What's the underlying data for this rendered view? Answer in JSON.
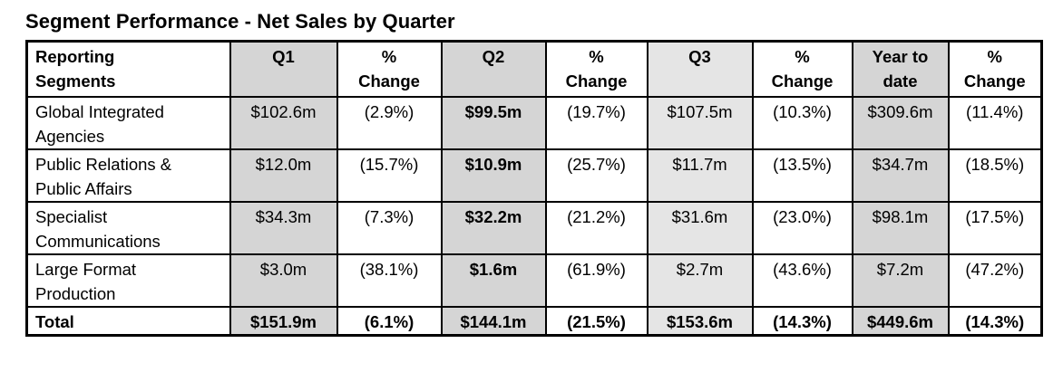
{
  "title": "Segment Performance - Net Sales by Quarter",
  "colors": {
    "shade_dark": "#d5d5d5",
    "shade_light": "#e5e5e5",
    "border": "#000000",
    "text": "#000000",
    "page_background": "#ffffff"
  },
  "table": {
    "header_labels": [
      "Reporting\nSegments",
      "Q1",
      "%\nChange",
      "Q2",
      "%\nChange",
      "Q3",
      "%\nChange",
      "Year to\ndate",
      "%\nChange"
    ],
    "columns": [
      {
        "key": "segment",
        "shade": "none",
        "align": "left",
        "bold_values": false
      },
      {
        "key": "q1",
        "shade": "dark",
        "align": "center",
        "bold_values": false
      },
      {
        "key": "q1-change",
        "shade": "none",
        "align": "center",
        "bold_values": false
      },
      {
        "key": "q2",
        "shade": "dark",
        "align": "center",
        "bold_values": true
      },
      {
        "key": "q2-change",
        "shade": "none",
        "align": "center",
        "bold_values": false
      },
      {
        "key": "q3",
        "shade": "light",
        "align": "center",
        "bold_values": false
      },
      {
        "key": "q3-change",
        "shade": "none",
        "align": "center",
        "bold_values": false
      },
      {
        "key": "ytd",
        "shade": "dark",
        "align": "center",
        "bold_values": false
      },
      {
        "key": "ytd-change",
        "shade": "none",
        "align": "center",
        "bold_values": false
      }
    ],
    "rows": [
      {
        "cells": [
          "Global Integrated\nAgencies",
          "$102.6m",
          "(2.9%)",
          "$99.5m",
          "(19.7%)",
          "$107.5m",
          "(10.3%)",
          "$309.6m",
          "(11.4%)"
        ],
        "total": false
      },
      {
        "cells": [
          "Public Relations &\nPublic Affairs",
          "$12.0m",
          "(15.7%)",
          "$10.9m",
          "(25.7%)",
          "$11.7m",
          "(13.5%)",
          "$34.7m",
          "(18.5%)"
        ],
        "total": false
      },
      {
        "cells": [
          "Specialist\nCommunications",
          "$34.3m",
          "(7.3%)",
          "$32.2m",
          "(21.2%)",
          "$31.6m",
          "(23.0%)",
          "$98.1m",
          "(17.5%)"
        ],
        "total": false
      },
      {
        "cells": [
          "Large Format\nProduction",
          "$3.0m",
          "(38.1%)",
          "$1.6m",
          "(61.9%)",
          "$2.7m",
          "(43.6%)",
          "$7.2m",
          "(47.2%)"
        ],
        "total": false
      },
      {
        "cells": [
          "Total",
          "$151.9m",
          "(6.1%)",
          "$144.1m",
          "(21.5%)",
          "$153.6m",
          "(14.3%)",
          "$449.6m",
          "(14.3%)"
        ],
        "total": true
      }
    ]
  }
}
